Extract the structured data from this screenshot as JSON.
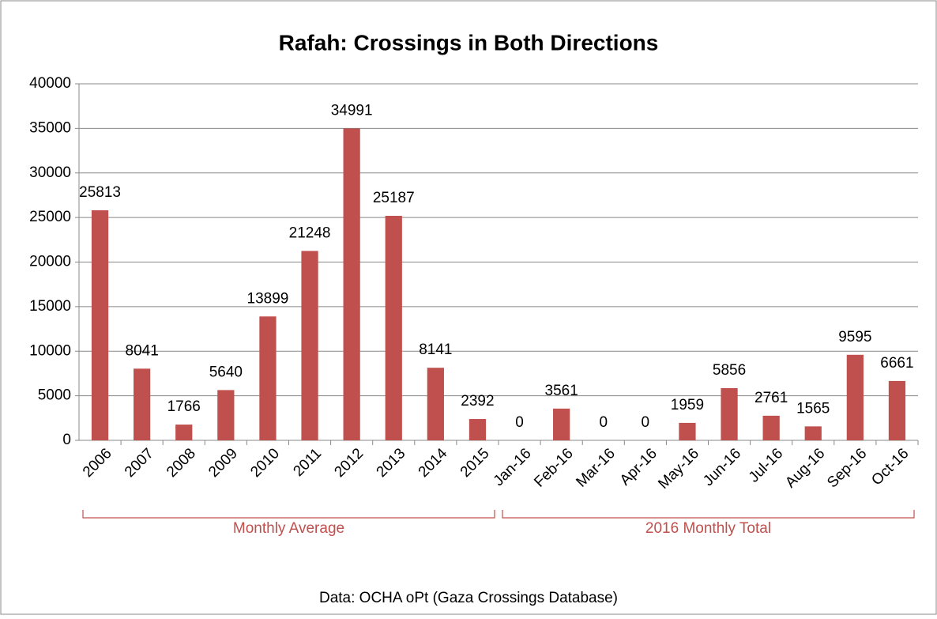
{
  "chart_data": {
    "type": "bar",
    "title": "Rafah: Crossings in Both Directions",
    "categories": [
      "2006",
      "2007",
      "2008",
      "2009",
      "2010",
      "2011",
      "2012",
      "2013",
      "2014",
      "2015",
      "Jan-16",
      "Feb-16",
      "Mar-16",
      "Apr-16",
      "May-16",
      "Jun-16",
      "Jul-16",
      "Aug-16",
      "Sep-16",
      "Oct-16"
    ],
    "values": [
      25813,
      8041,
      1766,
      5640,
      13899,
      21248,
      34991,
      25187,
      8141,
      2392,
      0,
      3561,
      0,
      0,
      1959,
      5856,
      2761,
      1565,
      9595,
      6661
    ],
    "color": "#c0504d",
    "ylim": [
      0,
      40000
    ],
    "yticks": [
      0,
      5000,
      10000,
      15000,
      20000,
      25000,
      30000,
      35000,
      40000
    ],
    "grid": true,
    "annotations": [
      "Monthly Average",
      "2016 Monthly Total"
    ],
    "source": "Data: OCHA oPt (Gaza Crossings Database)"
  }
}
